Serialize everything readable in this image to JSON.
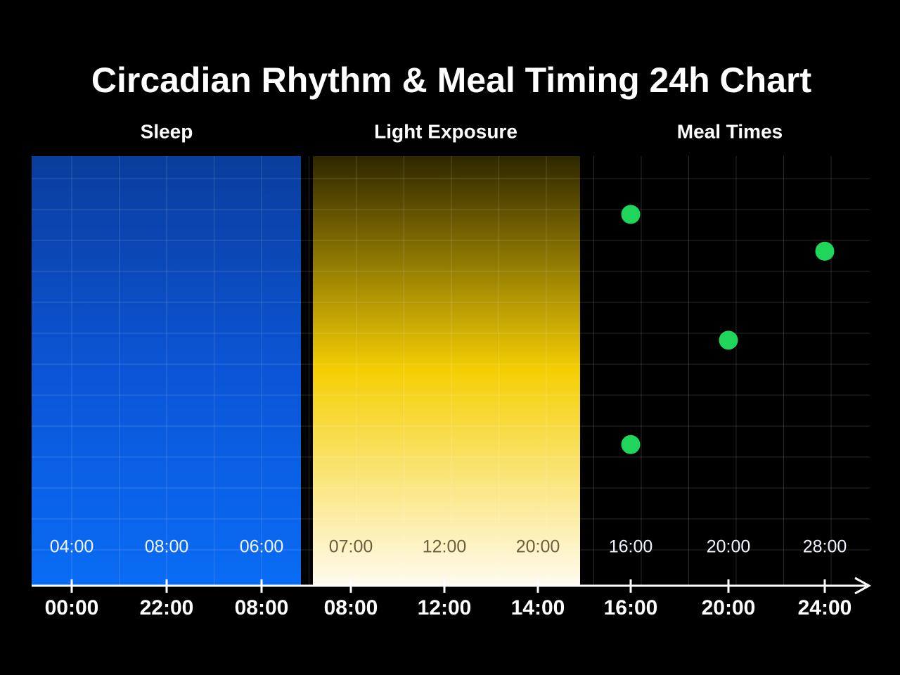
{
  "title": "Circadian Rhythm & Meal Timing 24h Chart",
  "chart_data": [
    {
      "type": "band",
      "name": "Sleep",
      "colors": [
        "#0a3d9c",
        "#0b55d6",
        "#0a6cf5"
      ],
      "inner_labels": [
        "04:00",
        "08:00",
        "06:00"
      ],
      "categories": [
        "00:00",
        "22:00",
        "08:00"
      ]
    },
    {
      "type": "band",
      "name": "Light Exposure",
      "colors": [
        "#2e2600",
        "#f5cf05",
        "#fffbf0"
      ],
      "inner_labels": [
        "07:00",
        "12:00",
        "20:00"
      ],
      "categories": [
        "08:00",
        "12:00",
        "14:00"
      ]
    },
    {
      "type": "scatter",
      "name": "Meal Times",
      "color": "#1fd65a",
      "inner_labels": [
        "16:00",
        "20:00",
        "28:00"
      ],
      "categories": [
        "16:00",
        "20:00",
        "24:00"
      ],
      "x": [
        "16:00",
        "24:00",
        "20:00",
        "16:00"
      ],
      "values": [
        12.1,
        10.9,
        8.0,
        4.6
      ],
      "ylim": [
        0,
        14
      ]
    }
  ]
}
